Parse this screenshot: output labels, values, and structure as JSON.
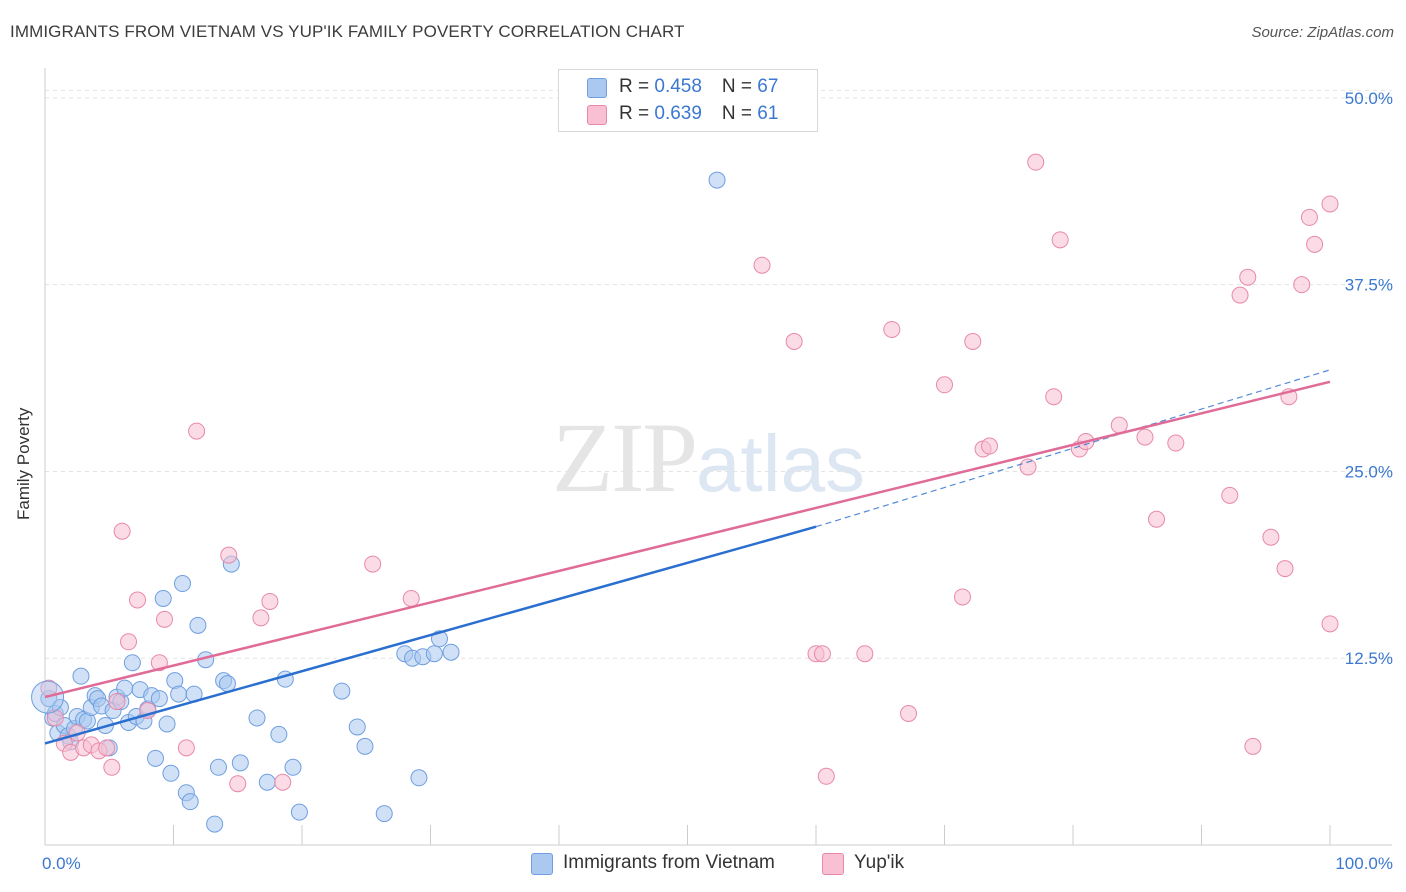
{
  "title": "IMMIGRANTS FROM VIETNAM VS YUP'IK FAMILY POVERTY CORRELATION CHART",
  "source": "Source: ZipAtlas.com",
  "watermark": {
    "zip": "ZIP",
    "atlas": "atlas"
  },
  "legend": {
    "items": [
      {
        "r_label": "R = ",
        "r_value": "0.458",
        "n_label": "N = ",
        "n_value": "67",
        "color": "#aac8f0",
        "border": "#6f9fe0"
      },
      {
        "r_label": "R = ",
        "r_value": "0.639",
        "n_label": "N = ",
        "n_value": "61",
        "color": "#f8c0d2",
        "border": "#e889a8"
      }
    ]
  },
  "chart_data": {
    "type": "scatter",
    "title": "IMMIGRANTS FROM VIETNAM VS YUP'IK FAMILY POVERTY CORRELATION CHART",
    "xlabel": "",
    "ylabel": "Family Poverty",
    "xlim": [
      0,
      100
    ],
    "ylim": [
      0,
      52
    ],
    "x_tick_labels": [
      "0.0%",
      "100.0%"
    ],
    "y_ticks": [
      12.5,
      25.0,
      37.5,
      50.0
    ],
    "y_tick_labels": [
      "12.5%",
      "25.0%",
      "37.5%",
      "50.0%"
    ],
    "grid": true,
    "legend_position": "bottom",
    "series": [
      {
        "name": "Immigrants from Vietnam",
        "color": "#6f9fe0",
        "fill": "#aac8f0",
        "trend_color": "#2a6fcf",
        "trend": {
          "x0": 0,
          "y0": 6.8,
          "x1": 60,
          "y1": 21.3,
          "dashed_to_x": 100,
          "dashed_to_y": 31.8
        },
        "points": [
          [
            0.3,
            9.8
          ],
          [
            0.6,
            8.5
          ],
          [
            0.8,
            8.8
          ],
          [
            1.0,
            7.5
          ],
          [
            1.2,
            9.2
          ],
          [
            1.5,
            8.0
          ],
          [
            1.8,
            7.3
          ],
          [
            2.0,
            6.9
          ],
          [
            2.3,
            7.8
          ],
          [
            2.5,
            8.6
          ],
          [
            2.8,
            11.3
          ],
          [
            3.0,
            8.4
          ],
          [
            3.3,
            8.3
          ],
          [
            3.6,
            9.2
          ],
          [
            3.9,
            10.0
          ],
          [
            4.1,
            9.8
          ],
          [
            4.4,
            9.3
          ],
          [
            4.7,
            8.0
          ],
          [
            5.0,
            6.5
          ],
          [
            5.3,
            9.0
          ],
          [
            5.6,
            9.9
          ],
          [
            5.9,
            9.6
          ],
          [
            6.2,
            10.5
          ],
          [
            6.5,
            8.2
          ],
          [
            6.8,
            12.2
          ],
          [
            7.1,
            8.6
          ],
          [
            7.4,
            10.4
          ],
          [
            7.7,
            8.3
          ],
          [
            8.0,
            9.1
          ],
          [
            8.3,
            10.0
          ],
          [
            8.6,
            5.8
          ],
          [
            8.9,
            9.8
          ],
          [
            9.2,
            16.5
          ],
          [
            9.5,
            8.1
          ],
          [
            9.8,
            4.8
          ],
          [
            10.1,
            11.0
          ],
          [
            10.4,
            10.1
          ],
          [
            10.7,
            17.5
          ],
          [
            11.0,
            3.5
          ],
          [
            11.3,
            2.9
          ],
          [
            11.6,
            10.1
          ],
          [
            11.9,
            14.7
          ],
          [
            12.5,
            12.4
          ],
          [
            13.2,
            1.4
          ],
          [
            13.5,
            5.2
          ],
          [
            13.9,
            11.0
          ],
          [
            14.2,
            10.8
          ],
          [
            14.5,
            18.8
          ],
          [
            15.2,
            5.5
          ],
          [
            16.5,
            8.5
          ],
          [
            17.3,
            4.2
          ],
          [
            18.2,
            7.4
          ],
          [
            18.7,
            11.1
          ],
          [
            19.3,
            5.2
          ],
          [
            19.8,
            2.2
          ],
          [
            23.1,
            10.3
          ],
          [
            24.3,
            7.9
          ],
          [
            24.9,
            6.6
          ],
          [
            26.4,
            2.1
          ],
          [
            28.0,
            12.8
          ],
          [
            28.6,
            12.5
          ],
          [
            29.1,
            4.5
          ],
          [
            29.4,
            12.6
          ],
          [
            30.3,
            12.8
          ],
          [
            30.7,
            13.8
          ],
          [
            31.6,
            12.9
          ],
          [
            52.3,
            44.5
          ]
        ]
      },
      {
        "name": "Yup'ik",
        "color": "#e889a8",
        "fill": "#f8c0d2",
        "trend_color": "#e06b97",
        "trend": {
          "x0": 0,
          "y0": 9.9,
          "x1": 100,
          "y1": 31.0
        },
        "points": [
          [
            0.3,
            10.5
          ],
          [
            0.8,
            8.5
          ],
          [
            1.5,
            6.8
          ],
          [
            2.0,
            6.2
          ],
          [
            2.5,
            7.5
          ],
          [
            3.0,
            6.5
          ],
          [
            3.6,
            6.7
          ],
          [
            4.2,
            6.3
          ],
          [
            4.8,
            6.5
          ],
          [
            5.2,
            5.2
          ],
          [
            5.6,
            9.6
          ],
          [
            6.0,
            21.0
          ],
          [
            6.5,
            13.6
          ],
          [
            7.2,
            16.4
          ],
          [
            8.0,
            9.0
          ],
          [
            8.9,
            12.2
          ],
          [
            9.3,
            15.1
          ],
          [
            11.0,
            6.5
          ],
          [
            11.8,
            27.7
          ],
          [
            14.3,
            19.4
          ],
          [
            15.0,
            4.1
          ],
          [
            16.8,
            15.2
          ],
          [
            17.5,
            16.3
          ],
          [
            18.5,
            4.2
          ],
          [
            25.5,
            18.8
          ],
          [
            28.5,
            16.5
          ],
          [
            55.8,
            38.8
          ],
          [
            58.3,
            33.7
          ],
          [
            60.0,
            12.8
          ],
          [
            60.5,
            12.8
          ],
          [
            60.8,
            4.6
          ],
          [
            63.8,
            12.8
          ],
          [
            65.9,
            34.5
          ],
          [
            67.2,
            8.8
          ],
          [
            70.0,
            30.8
          ],
          [
            71.4,
            16.6
          ],
          [
            72.2,
            33.7
          ],
          [
            73.0,
            26.5
          ],
          [
            73.5,
            26.7
          ],
          [
            76.5,
            25.3
          ],
          [
            77.1,
            45.7
          ],
          [
            78.5,
            30.0
          ],
          [
            79.0,
            40.5
          ],
          [
            80.5,
            26.5
          ],
          [
            81.0,
            27.0
          ],
          [
            83.6,
            28.1
          ],
          [
            85.6,
            27.3
          ],
          [
            86.5,
            21.8
          ],
          [
            88.0,
            26.9
          ],
          [
            92.2,
            23.4
          ],
          [
            93.0,
            36.8
          ],
          [
            93.6,
            38.0
          ],
          [
            94.0,
            6.6
          ],
          [
            95.4,
            20.6
          ],
          [
            96.5,
            18.5
          ],
          [
            96.8,
            30.0
          ],
          [
            97.8,
            37.5
          ],
          [
            98.4,
            42.0
          ],
          [
            98.8,
            40.2
          ],
          [
            100.0,
            14.8
          ],
          [
            100.0,
            42.9
          ]
        ]
      }
    ]
  }
}
